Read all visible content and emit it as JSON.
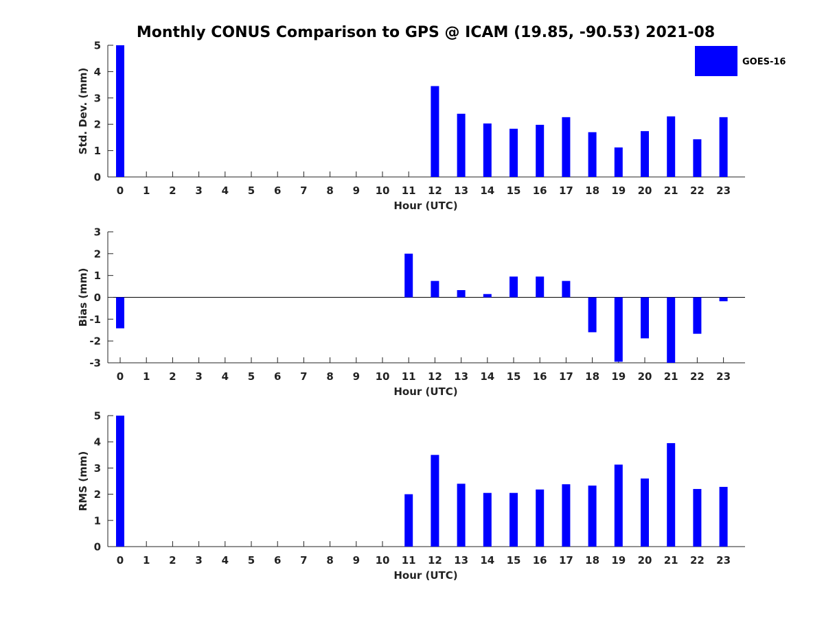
{
  "chart_data": {
    "type": "bar",
    "title": "Monthly CONUS Comparison to GPS @ ICAM (19.85, -90.53) 2021-08",
    "legend": {
      "label": "GOES-16",
      "color": "#0000ff",
      "placement": "top-right"
    },
    "categories": [
      "0",
      "1",
      "2",
      "3",
      "4",
      "5",
      "6",
      "7",
      "8",
      "9",
      "10",
      "11",
      "12",
      "13",
      "14",
      "15",
      "16",
      "17",
      "18",
      "19",
      "20",
      "21",
      "22",
      "23"
    ],
    "panels": [
      {
        "id": "stddev",
        "ylabel": "Std. Dev. (mm)",
        "xlabel": "Hour (UTC)",
        "ylim": [
          0,
          5
        ],
        "yticks": [
          0,
          1,
          2,
          3,
          4,
          5
        ],
        "series": [
          {
            "name": "GOES-16",
            "values": [
              5.0,
              null,
              null,
              null,
              null,
              null,
              null,
              null,
              null,
              null,
              null,
              null,
              3.45,
              2.4,
              2.03,
              1.83,
              1.98,
              2.27,
              1.7,
              1.12,
              1.74,
              2.3,
              1.43,
              2.27
            ]
          }
        ]
      },
      {
        "id": "bias",
        "ylabel": "Bias (mm)",
        "xlabel": "Hour (UTC)",
        "ylim": [
          -3,
          3
        ],
        "yticks": [
          -3,
          -2,
          -1,
          0,
          1,
          2,
          3
        ],
        "zero_line": true,
        "series": [
          {
            "name": "GOES-16",
            "values": [
              -1.42,
              null,
              null,
              null,
              null,
              null,
              null,
              null,
              null,
              null,
              null,
              2.0,
              0.75,
              0.33,
              0.15,
              0.95,
              0.95,
              0.75,
              -1.6,
              -2.95,
              -1.88,
              -3.0,
              -1.67,
              -0.18
            ]
          }
        ]
      },
      {
        "id": "rms",
        "ylabel": "RMS (mm)",
        "xlabel": "Hour (UTC)",
        "ylim": [
          0,
          5
        ],
        "yticks": [
          0,
          1,
          2,
          3,
          4,
          5
        ],
        "series": [
          {
            "name": "GOES-16",
            "values": [
              5.0,
              null,
              null,
              null,
              null,
              null,
              null,
              null,
              null,
              null,
              null,
              2.0,
              3.5,
              2.4,
              2.05,
              2.05,
              2.18,
              2.38,
              2.33,
              3.13,
              2.6,
              3.95,
              2.2,
              2.28
            ]
          }
        ]
      }
    ]
  }
}
